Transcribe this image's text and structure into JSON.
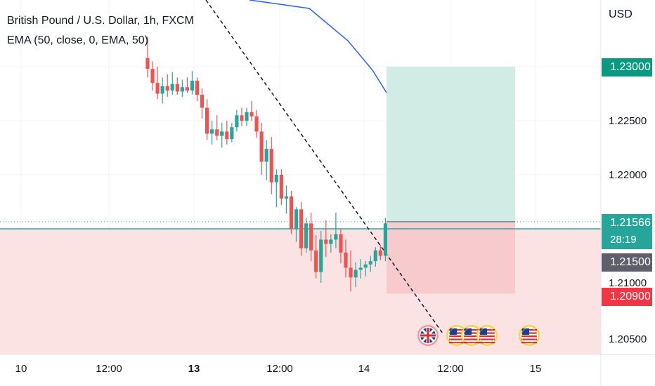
{
  "legend": {
    "title": "British Pound / U.S. Dollar, 1h, FXCM",
    "indicator": "EMA (50, close, 0, EMA, 50)"
  },
  "currency": "USD",
  "price_axis": [
    "1.22500",
    "1.22000",
    "1.21000",
    "1.20500"
  ],
  "time_axis": [
    {
      "label": "10",
      "bold": false
    },
    {
      "label": "12:00",
      "bold": false
    },
    {
      "label": "13",
      "bold": true
    },
    {
      "label": "12:00",
      "bold": false
    },
    {
      "label": "14",
      "bold": false
    },
    {
      "label": "12:00",
      "bold": false
    },
    {
      "label": "15",
      "bold": false
    }
  ],
  "price_tags": {
    "target": "1.23000",
    "current": "1.21566",
    "countdown": "28:19",
    "line": "1.21500",
    "stop": "1.20900"
  },
  "colors": {
    "up": "#26a69a",
    "down": "#ef5350",
    "ema": "#2962ff",
    "profit_zone": "#cdebe4",
    "loss_zone": "#f7c9cc",
    "grey_tag": "#5d606b"
  },
  "events": [
    {
      "icon": "uk-flag-icon",
      "country": "GB"
    },
    {
      "icon": "us-flag-icon",
      "country": "US"
    },
    {
      "icon": "us-flag-icon",
      "country": "US"
    },
    {
      "icon": "us-flag-icon",
      "country": "US"
    },
    {
      "icon": "us-flag-icon",
      "country": "US"
    }
  ],
  "chart_data": {
    "type": "candlestick",
    "symbol": "GBPUSD",
    "interval": "1h",
    "ylim": [
      1.2035,
      1.2335
    ],
    "ohlc": [
      [
        1.2308,
        1.2328,
        1.229,
        1.2298
      ],
      [
        1.2298,
        1.2305,
        1.2278,
        1.2285
      ],
      [
        1.2285,
        1.23,
        1.227,
        1.2275
      ],
      [
        1.2275,
        1.229,
        1.2266,
        1.2282
      ],
      [
        1.2282,
        1.2293,
        1.2272,
        1.2278
      ],
      [
        1.2278,
        1.2295,
        1.2274,
        1.2284
      ],
      [
        1.2284,
        1.229,
        1.2274,
        1.2277
      ],
      [
        1.2277,
        1.2288,
        1.2272,
        1.2281
      ],
      [
        1.2281,
        1.229,
        1.2276,
        1.2278
      ],
      [
        1.2278,
        1.2296,
        1.2274,
        1.2287
      ],
      [
        1.2287,
        1.229,
        1.2268,
        1.2274
      ],
      [
        1.2274,
        1.228,
        1.2252,
        1.2262
      ],
      [
        1.2262,
        1.227,
        1.2232,
        1.2238
      ],
      [
        1.2238,
        1.225,
        1.2228,
        1.2242
      ],
      [
        1.2242,
        1.2255,
        1.2232,
        1.2236
      ],
      [
        1.2236,
        1.2248,
        1.2225,
        1.224
      ],
      [
        1.224,
        1.225,
        1.2228,
        1.2233
      ],
      [
        1.2233,
        1.2248,
        1.223,
        1.2244
      ],
      [
        1.2244,
        1.226,
        1.224,
        1.2255
      ],
      [
        1.2255,
        1.2262,
        1.2245,
        1.225
      ],
      [
        1.225,
        1.2262,
        1.2245,
        1.2258
      ],
      [
        1.2258,
        1.2268,
        1.225,
        1.2254
      ],
      [
        1.2254,
        1.226,
        1.2234,
        1.224
      ],
      [
        1.224,
        1.2248,
        1.22,
        1.2212
      ],
      [
        1.2212,
        1.2232,
        1.2195,
        1.2224
      ],
      [
        1.2224,
        1.2235,
        1.2182,
        1.2193
      ],
      [
        1.2193,
        1.2205,
        1.217,
        1.22
      ],
      [
        1.22,
        1.2205,
        1.2172,
        1.2178
      ],
      [
        1.2178,
        1.219,
        1.2164,
        1.218
      ],
      [
        1.218,
        1.2185,
        1.2145,
        1.215
      ],
      [
        1.215,
        1.217,
        1.2138,
        1.2168
      ],
      [
        1.2168,
        1.2175,
        1.2125,
        1.2132
      ],
      [
        1.2132,
        1.216,
        1.2128,
        1.2155
      ],
      [
        1.2155,
        1.2165,
        1.212,
        1.213
      ],
      [
        1.213,
        1.2144,
        1.2104,
        1.211
      ],
      [
        1.211,
        1.2148,
        1.21,
        1.214
      ],
      [
        1.214,
        1.2158,
        1.2124,
        1.2136
      ],
      [
        1.2136,
        1.2145,
        1.2128,
        1.214
      ],
      [
        1.214,
        1.2165,
        1.2132,
        1.2145
      ],
      [
        1.2145,
        1.215,
        1.2118,
        1.2128
      ],
      [
        1.2128,
        1.214,
        1.2105,
        1.2114
      ],
      [
        1.2114,
        1.213,
        1.2092,
        1.2105
      ],
      [
        1.2105,
        1.2119,
        1.2096,
        1.2112
      ],
      [
        1.2112,
        1.2122,
        1.2104,
        1.2114
      ],
      [
        1.2114,
        1.212,
        1.2106,
        1.2117
      ],
      [
        1.2117,
        1.2125,
        1.211,
        1.212
      ],
      [
        1.212,
        1.2133,
        1.2115,
        1.213
      ],
      [
        1.213,
        1.2135,
        1.2121,
        1.2125
      ],
      [
        1.2125,
        1.216,
        1.212,
        1.2155
      ]
    ],
    "ema50": [
      [
        1.2342,
        0
      ],
      [
        1.233,
        6
      ],
      [
        1.2318,
        12
      ],
      [
        1.2306,
        17
      ],
      [
        1.2296,
        22
      ],
      [
        1.2284,
        27
      ]
    ],
    "long_position": {
      "entry": 1.21566,
      "target": 1.23,
      "stop": 1.209
    },
    "horizontal_line": 1.215,
    "trend_line": [
      [
        1.2345,
        12
      ],
      [
        1.205,
        44
      ]
    ]
  }
}
